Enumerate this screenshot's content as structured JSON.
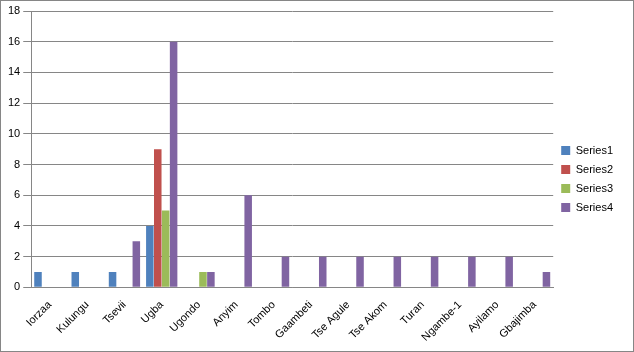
{
  "chart_data": {
    "type": "bar",
    "categories": [
      "Iorzaa",
      "Kulungu",
      "Tsevii",
      "Ugba",
      "Ugondo",
      "Anyim",
      "Tombo",
      "Gaambeti",
      "Tse Agule",
      "Tse Akom",
      "Turan",
      "Ngambe-1",
      "Ayilamo",
      "Gbajimba"
    ],
    "series": [
      {
        "name": "Series1",
        "color": "#4f81bd",
        "values": [
          1,
          1,
          1,
          4,
          null,
          null,
          null,
          null,
          null,
          null,
          null,
          null,
          null,
          null
        ]
      },
      {
        "name": "Series2",
        "color": "#c0504d",
        "values": [
          null,
          null,
          null,
          9,
          null,
          null,
          null,
          null,
          null,
          null,
          null,
          null,
          null,
          null
        ]
      },
      {
        "name": "Series3",
        "color": "#9bbb59",
        "values": [
          null,
          null,
          null,
          5,
          1,
          null,
          null,
          null,
          null,
          null,
          null,
          null,
          null,
          null
        ]
      },
      {
        "name": "Series4",
        "color": "#8064a2",
        "values": [
          null,
          null,
          3,
          16,
          1,
          6,
          2,
          2,
          2,
          2,
          2,
          2,
          2,
          1
        ]
      }
    ],
    "ylim": [
      0,
      18
    ],
    "yticks": [
      0,
      2,
      4,
      6,
      8,
      10,
      12,
      14,
      16,
      18
    ],
    "grid": true,
    "legend": "right"
  }
}
